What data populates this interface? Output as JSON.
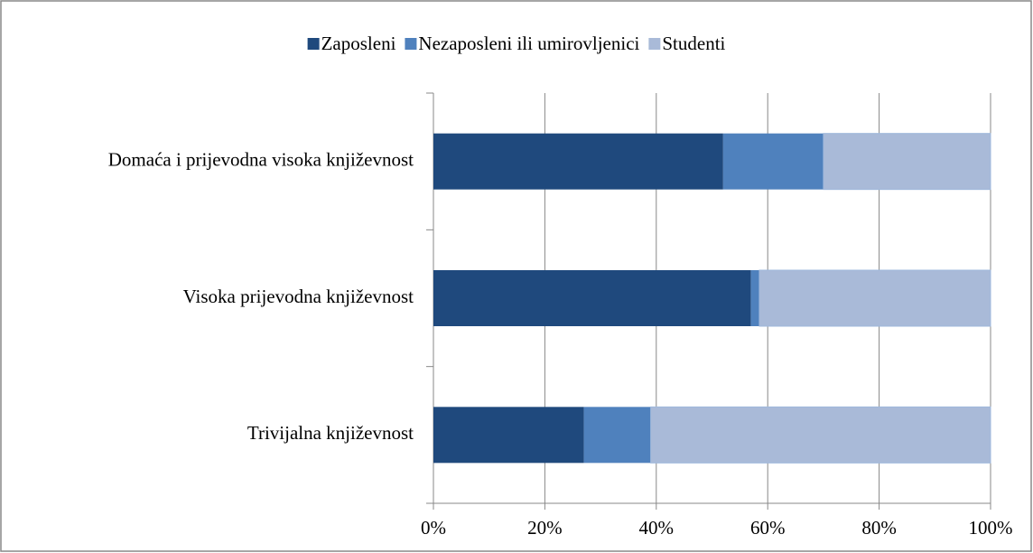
{
  "chart_data": {
    "type": "stacked_barh",
    "categories": [
      "Domaća i prijevodna visoka književnost",
      "Visoka prijevodna književnost",
      "Trivijalna književnost"
    ],
    "series": [
      {
        "name": "Zaposleni",
        "color": "#1f497d",
        "values": [
          52,
          57,
          27
        ]
      },
      {
        "name": "Nezaposleni ili umirovljenici",
        "color": "#4f81bd",
        "values": [
          18,
          1.5,
          12
        ]
      },
      {
        "name": "Studenti",
        "color": "#a9bad8",
        "values": [
          30,
          41.5,
          61
        ]
      }
    ],
    "xlim": [
      0,
      100
    ],
    "xticks": [
      {
        "value": 0,
        "label": "0%"
      },
      {
        "value": 20,
        "label": "20%"
      },
      {
        "value": 40,
        "label": "40%"
      },
      {
        "value": 60,
        "label": "60%"
      },
      {
        "value": 80,
        "label": "80%"
      },
      {
        "value": 100,
        "label": "100%"
      }
    ],
    "grid": true,
    "legend": "top"
  }
}
